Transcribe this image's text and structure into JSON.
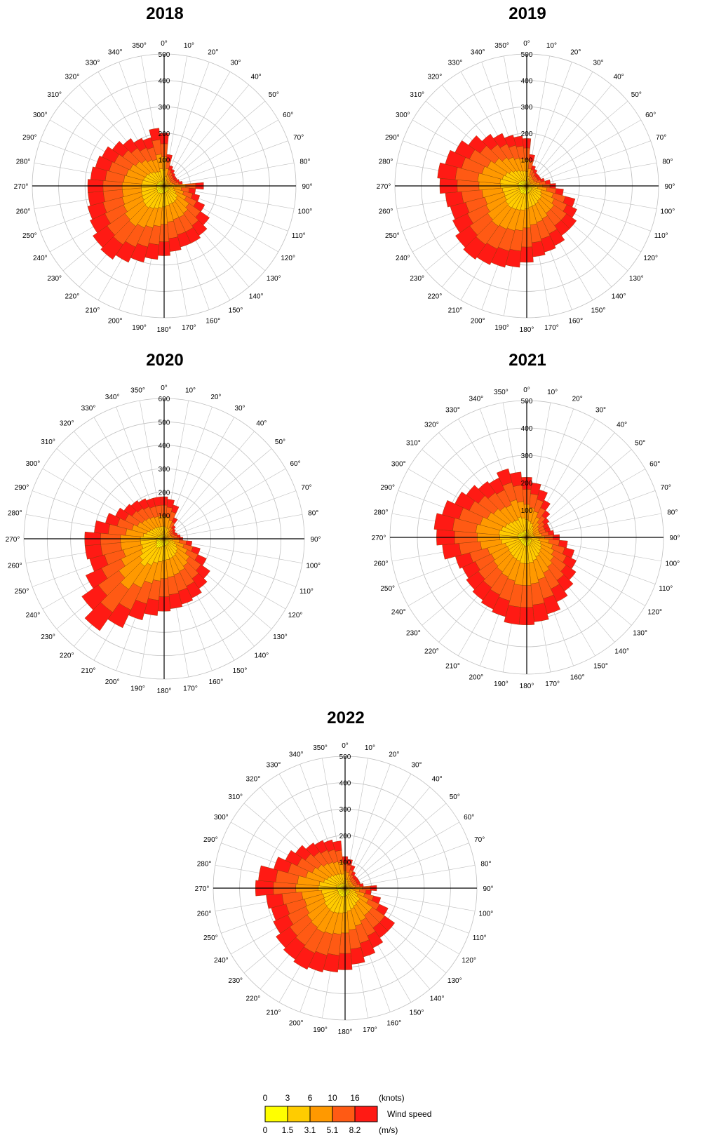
{
  "colors": {
    "speed_classes": [
      "#ffff00",
      "#ffcc00",
      "#ff9900",
      "#ff5a14",
      "#ff1a14"
    ],
    "grid": "#c0c0c0",
    "axis": "#000000"
  },
  "chart_data": [
    {
      "type": "polar-stacked-bar",
      "title": "2018",
      "rlim": [
        0,
        500
      ],
      "r_ticks": [
        100,
        200,
        300,
        400,
        500
      ],
      "dir_labels": [
        "0°",
        "10°",
        "20°",
        "30°",
        "40°",
        "50°",
        "60°",
        "70°",
        "80°",
        "90°",
        "100°",
        "110°",
        "120°",
        "130°",
        "140°",
        "150°",
        "160°",
        "170°",
        "180°",
        "190°",
        "200°",
        "210°",
        "220°",
        "230°",
        "240°",
        "250°",
        "260°",
        "270°",
        "280°",
        "290°",
        "300°",
        "310°",
        "320°",
        "330°",
        "340°",
        "350°"
      ],
      "totals": [
        200,
        120,
        80,
        70,
        60,
        55,
        55,
        60,
        70,
        150,
        120,
        140,
        170,
        210,
        230,
        240,
        240,
        250,
        265,
        280,
        300,
        320,
        340,
        330,
        310,
        300,
        290,
        290,
        280,
        270,
        260,
        240,
        220,
        200,
        190,
        220
      ]
    },
    {
      "type": "polar-stacked-bar",
      "title": "2019",
      "rlim": [
        0,
        500
      ],
      "r_ticks": [
        100,
        200,
        300,
        400,
        500
      ],
      "dir_labels": [
        "0°",
        "10°",
        "20°",
        "30°",
        "40°",
        "50°",
        "60°",
        "70°",
        "80°",
        "90°",
        "100°",
        "110°",
        "120°",
        "130°",
        "140°",
        "150°",
        "160°",
        "170°",
        "180°",
        "190°",
        "200°",
        "210°",
        "220°",
        "230°",
        "240°",
        "250°",
        "260°",
        "270°",
        "280°",
        "290°",
        "300°",
        "310°",
        "320°",
        "330°",
        "340°",
        "350°"
      ],
      "totals": [
        180,
        120,
        80,
        70,
        60,
        60,
        60,
        70,
        90,
        110,
        140,
        190,
        210,
        230,
        230,
        250,
        260,
        270,
        290,
        310,
        320,
        330,
        340,
        330,
        310,
        300,
        310,
        330,
        340,
        320,
        300,
        270,
        240,
        220,
        200,
        190
      ]
    },
    {
      "type": "polar-stacked-bar",
      "title": "2020",
      "rlim": [
        0,
        600
      ],
      "r_ticks": [
        100,
        200,
        300,
        400,
        500,
        600
      ],
      "dir_labels": [
        "0°",
        "10°",
        "20°",
        "30°",
        "40°",
        "50°",
        "60°",
        "70°",
        "80°",
        "90°",
        "100°",
        "110°",
        "120°",
        "130°",
        "140°",
        "150°",
        "160°",
        "170°",
        "180°",
        "190°",
        "200°",
        "210°",
        "220°",
        "230°",
        "240°",
        "250°",
        "260°",
        "270°",
        "280°",
        "290°",
        "300°",
        "310°",
        "320°",
        "330°",
        "340°",
        "350°"
      ],
      "totals": [
        180,
        170,
        150,
        100,
        70,
        60,
        55,
        60,
        70,
        80,
        120,
        160,
        200,
        240,
        260,
        280,
        290,
        300,
        310,
        330,
        360,
        420,
        480,
        430,
        370,
        330,
        340,
        340,
        300,
        260,
        230,
        210,
        200,
        190,
        180,
        180
      ]
    },
    {
      "type": "polar-stacked-bar",
      "title": "2021",
      "rlim": [
        0,
        500
      ],
      "r_ticks": [
        100,
        200,
        300,
        400,
        500
      ],
      "dir_labels": [
        "0°",
        "10°",
        "20°",
        "30°",
        "40°",
        "50°",
        "60°",
        "70°",
        "80°",
        "90°",
        "100°",
        "110°",
        "120°",
        "130°",
        "140°",
        "150°",
        "160°",
        "170°",
        "180°",
        "190°",
        "200°",
        "210°",
        "220°",
        "230°",
        "240°",
        "250°",
        "260°",
        "270°",
        "280°",
        "290°",
        "300°",
        "310°",
        "320°",
        "330°",
        "340°",
        "350°"
      ],
      "totals": [
        220,
        200,
        180,
        150,
        120,
        100,
        90,
        90,
        100,
        120,
        150,
        180,
        200,
        220,
        240,
        260,
        290,
        310,
        320,
        320,
        300,
        290,
        280,
        270,
        260,
        270,
        310,
        330,
        340,
        320,
        290,
        270,
        250,
        240,
        260,
        240
      ]
    },
    {
      "type": "polar-stacked-bar",
      "title": "2022",
      "rlim": [
        0,
        500
      ],
      "r_ticks": [
        100,
        200,
        300,
        400,
        500
      ],
      "dir_labels": [
        "0°",
        "10°",
        "20°",
        "30°",
        "40°",
        "50°",
        "60°",
        "70°",
        "80°",
        "90°",
        "100°",
        "110°",
        "120°",
        "130°",
        "140°",
        "150°",
        "160°",
        "170°",
        "180°",
        "190°",
        "200°",
        "210°",
        "220°",
        "230°",
        "240°",
        "250°",
        "260°",
        "270°",
        "280°",
        "290°",
        "300°",
        "310°",
        "320°",
        "330°",
        "340°",
        "350°"
      ],
      "totals": [
        120,
        110,
        90,
        70,
        60,
        60,
        60,
        60,
        70,
        120,
        100,
        140,
        180,
        230,
        230,
        250,
        270,
        290,
        310,
        320,
        330,
        340,
        330,
        320,
        300,
        290,
        300,
        340,
        330,
        280,
        250,
        230,
        210,
        200,
        190,
        180
      ]
    }
  ],
  "legend": {
    "knots_ticks": [
      "0",
      "3",
      "6",
      "10",
      "16"
    ],
    "knots_unit": "(knots)",
    "ms_ticks": [
      "0",
      "1.5",
      "3.1",
      "5.1",
      "8.2"
    ],
    "ms_unit": "(m/s)",
    "label": "Wind speed"
  }
}
